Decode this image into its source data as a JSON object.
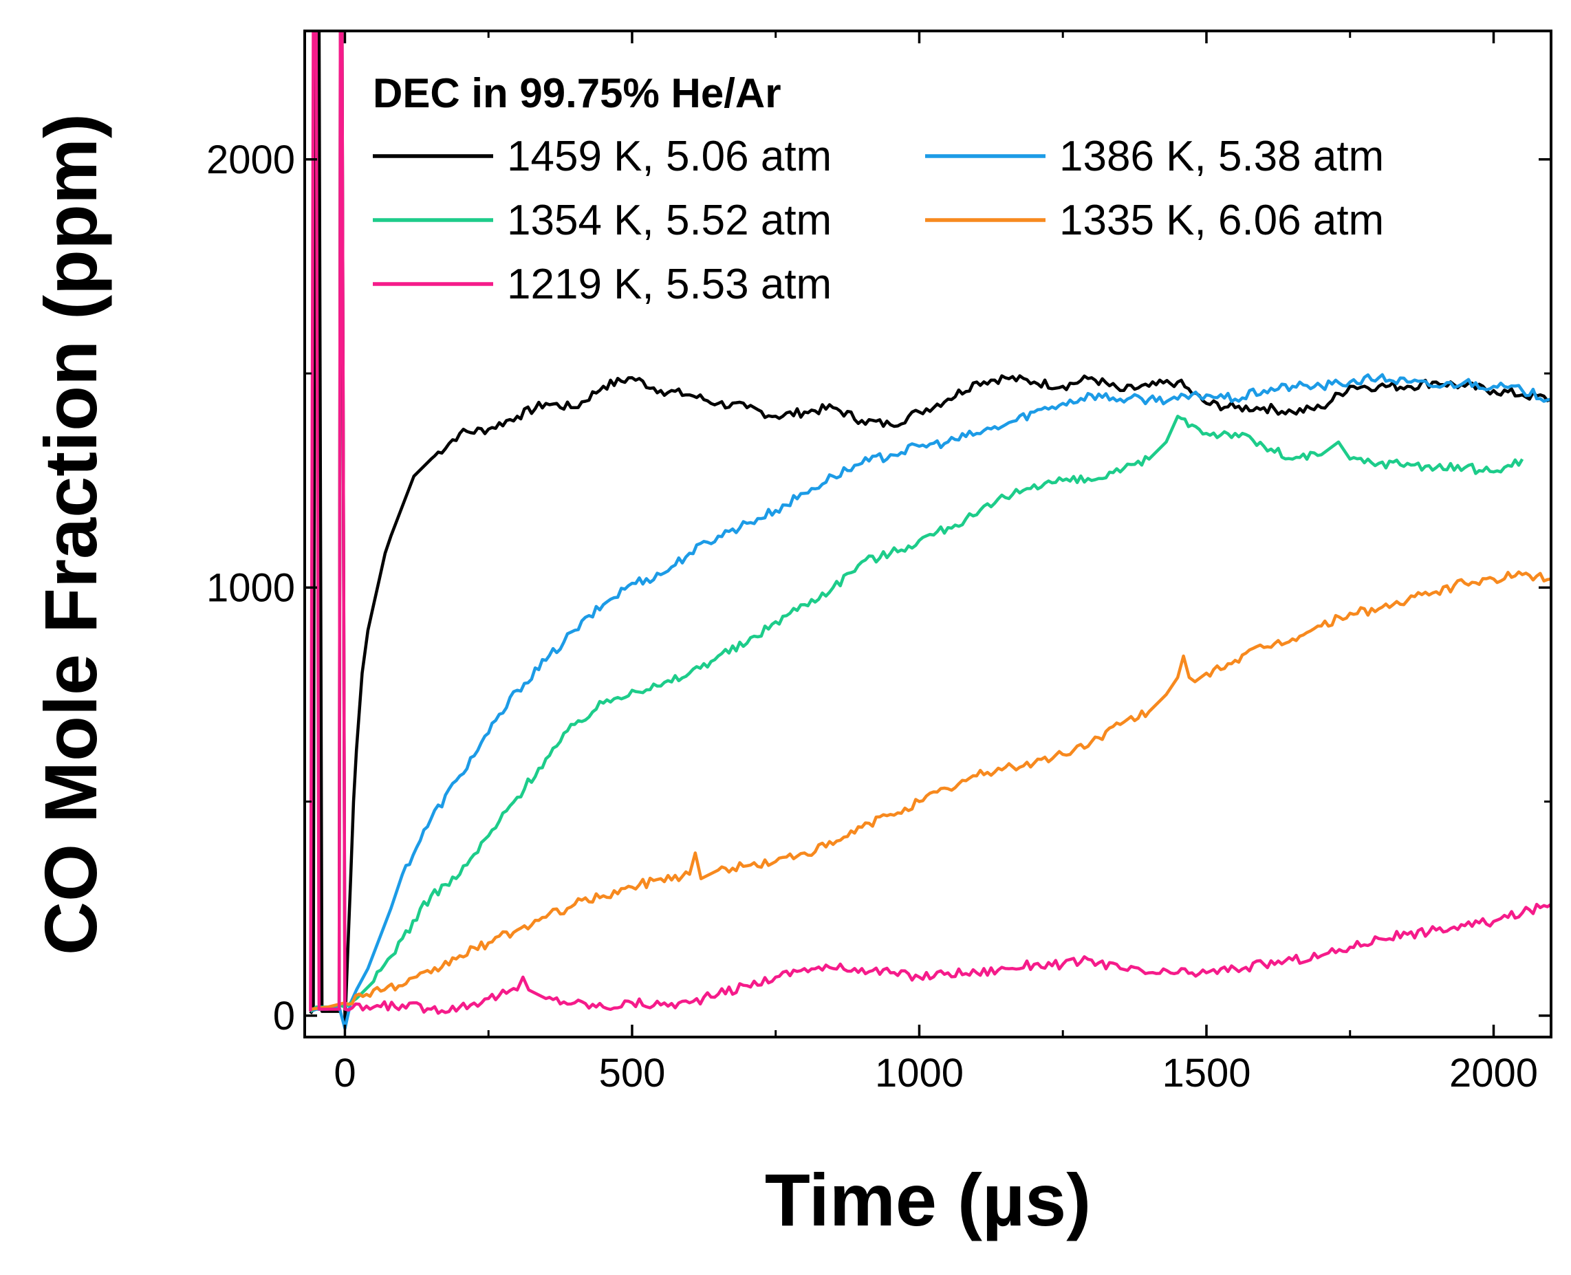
{
  "chart_data": {
    "type": "line",
    "title": "DEC in 99.75% He/Ar",
    "xlabel": "Time (µs)",
    "ylabel": "CO Mole Fraction (ppm)",
    "xlim": [
      -70,
      2100
    ],
    "ylim": [
      -50,
      2300
    ],
    "xticks": [
      0,
      500,
      1000,
      1500,
      2000
    ],
    "yticks": [
      0,
      1000,
      2000
    ],
    "xtick_labels": [
      "0",
      "500",
      "1000",
      "1500",
      "2000"
    ],
    "ytick_labels": [
      "0",
      "1000",
      "2000"
    ],
    "legend_placement": "top",
    "series": [
      {
        "name": "1459 K, 5.06 atm",
        "color": "#000000",
        "x": [
          -60,
          -55,
          -52,
          -45,
          -40,
          -30,
          -20,
          -10,
          -8,
          -5,
          0,
          5,
          10,
          15,
          20,
          30,
          40,
          50,
          60,
          70,
          80,
          100,
          120,
          150,
          200,
          250,
          300,
          350,
          400,
          450,
          500,
          550,
          600,
          650,
          700,
          750,
          800,
          850,
          900,
          950,
          1000,
          1050,
          1100,
          1150,
          1200,
          1250,
          1300,
          1350,
          1400,
          1450,
          1500,
          1550,
          1600,
          1650,
          1700,
          1750,
          1800,
          1850,
          1900,
          1950,
          2000,
          2050,
          2100
        ],
        "y": [
          5,
          15,
          2300,
          2300,
          10,
          10,
          10,
          10,
          2300,
          2300,
          -20,
          150,
          320,
          500,
          620,
          800,
          900,
          960,
          1020,
          1080,
          1120,
          1190,
          1260,
          1300,
          1360,
          1370,
          1400,
          1430,
          1420,
          1470,
          1490,
          1460,
          1450,
          1430,
          1420,
          1400,
          1410,
          1420,
          1390,
          1380,
          1410,
          1440,
          1480,
          1490,
          1480,
          1470,
          1490,
          1460,
          1470,
          1480,
          1430,
          1420,
          1420,
          1410,
          1420,
          1470,
          1470,
          1470,
          1480,
          1470,
          1460,
          1450,
          1440
        ]
      },
      {
        "name": "1386 K, 5.38 atm",
        "color": "#1c9be6",
        "x": [
          -60,
          -50,
          -30,
          -10,
          0,
          10,
          20,
          40,
          60,
          80,
          100,
          150,
          200,
          250,
          300,
          350,
          400,
          450,
          500,
          550,
          600,
          650,
          700,
          750,
          800,
          850,
          900,
          950,
          1000,
          1050,
          1100,
          1150,
          1200,
          1250,
          1300,
          1350,
          1400,
          1450,
          1500,
          1550,
          1600,
          1650,
          1700,
          1750,
          1800,
          1850,
          1900,
          1950,
          2000,
          2050,
          2100
        ],
        "y": [
          10,
          15,
          15,
          20,
          -30,
          30,
          60,
          110,
          180,
          250,
          330,
          460,
          560,
          660,
          760,
          830,
          900,
          960,
          1010,
          1030,
          1080,
          1120,
          1150,
          1180,
          1220,
          1260,
          1290,
          1310,
          1330,
          1340,
          1360,
          1380,
          1410,
          1430,
          1450,
          1440,
          1440,
          1440,
          1450,
          1440,
          1460,
          1470,
          1470,
          1480,
          1490,
          1480,
          1470,
          1480,
          1470,
          1460,
          1440
        ]
      },
      {
        "name": "1354 K, 5.52 atm",
        "color": "#1dcc8a",
        "x": [
          -60,
          -50,
          -30,
          -10,
          0,
          20,
          50,
          100,
          150,
          200,
          250,
          300,
          350,
          400,
          450,
          500,
          550,
          600,
          650,
          700,
          750,
          800,
          850,
          900,
          950,
          1000,
          1050,
          1100,
          1150,
          1200,
          1250,
          1300,
          1350,
          1400,
          1430,
          1450,
          1500,
          1550,
          1600,
          1650,
          1700,
          1730,
          1750,
          1800,
          1850,
          1900,
          1950,
          2000,
          2050
        ],
        "y": [
          10,
          20,
          20,
          25,
          20,
          40,
          80,
          180,
          280,
          330,
          420,
          510,
          600,
          680,
          730,
          760,
          770,
          800,
          840,
          870,
          920,
          960,
          1000,
          1060,
          1080,
          1110,
          1140,
          1170,
          1210,
          1240,
          1250,
          1250,
          1270,
          1300,
          1340,
          1400,
          1360,
          1360,
          1330,
          1300,
          1310,
          1340,
          1300,
          1290,
          1290,
          1280,
          1280,
          1270,
          1300
        ]
      },
      {
        "name": "1335 K, 6.06 atm",
        "color": "#f7891e",
        "x": [
          -60,
          -30,
          0,
          50,
          100,
          150,
          200,
          250,
          300,
          350,
          400,
          450,
          500,
          550,
          600,
          610,
          620,
          650,
          700,
          750,
          800,
          850,
          900,
          950,
          1000,
          1050,
          1100,
          1150,
          1200,
          1250,
          1300,
          1350,
          1400,
          1430,
          1450,
          1460,
          1470,
          1480,
          1500,
          1550,
          1600,
          1650,
          1700,
          1750,
          1800,
          1850,
          1900,
          1950,
          2000,
          2050,
          2100
        ],
        "y": [
          15,
          20,
          30,
          60,
          70,
          100,
          140,
          170,
          200,
          230,
          260,
          280,
          300,
          320,
          330,
          380,
          320,
          340,
          350,
          360,
          380,
          400,
          440,
          470,
          500,
          530,
          560,
          580,
          590,
          610,
          640,
          680,
          710,
          750,
          790,
          840,
          790,
          780,
          800,
          830,
          860,
          880,
          910,
          940,
          950,
          970,
          990,
          1010,
          1020,
          1030,
          1020
        ]
      },
      {
        "name": "1219 K, 5.53 atm",
        "color": "#f51b8a",
        "x": [
          -60,
          -55,
          -50,
          -45,
          -40,
          -30,
          -20,
          -10,
          -8,
          -5,
          0,
          50,
          100,
          150,
          200,
          250,
          300,
          310,
          320,
          350,
          400,
          450,
          500,
          550,
          600,
          650,
          700,
          750,
          800,
          850,
          900,
          950,
          1000,
          1050,
          1100,
          1150,
          1200,
          1250,
          1300,
          1350,
          1400,
          1450,
          1500,
          1550,
          1600,
          1650,
          1700,
          1750,
          1800,
          1850,
          1900,
          1950,
          2000,
          2050,
          2100
        ],
        "y": [
          10,
          2300,
          2300,
          15,
          15,
          15,
          15,
          15,
          2300,
          2300,
          15,
          20,
          25,
          15,
          20,
          40,
          60,
          90,
          60,
          40,
          30,
          20,
          30,
          25,
          30,
          50,
          70,
          90,
          110,
          110,
          110,
          100,
          90,
          100,
          100,
          110,
          120,
          120,
          130,
          110,
          100,
          100,
          100,
          110,
          120,
          130,
          140,
          160,
          180,
          190,
          200,
          210,
          220,
          240,
          260
        ]
      }
    ]
  }
}
